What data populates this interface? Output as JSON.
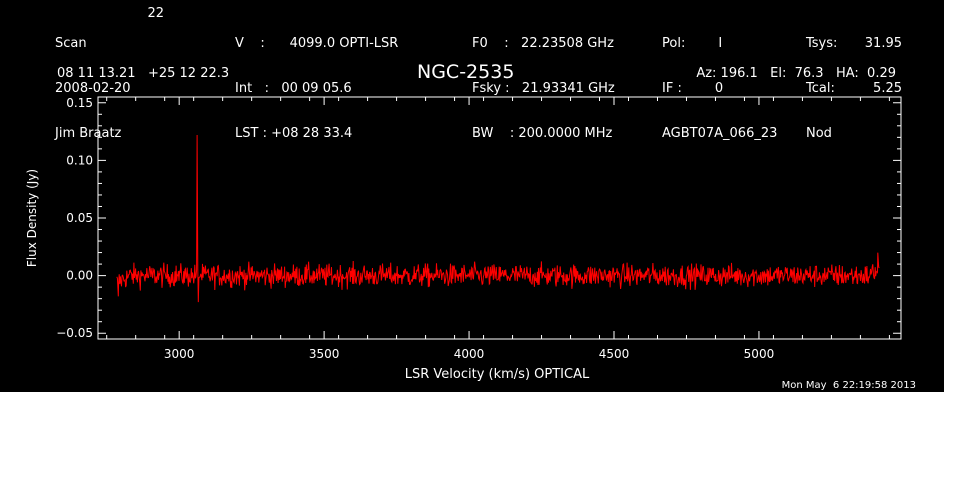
{
  "header": {
    "col1": [
      "Scan",
      "2008-02-20",
      "Jim Braatz"
    ],
    "scan_number": "22",
    "col2": [
      "V    :      4099.0 OPTI-LSR",
      "Int   :   00 09 05.6",
      "LST : +08 28 33.4"
    ],
    "col3": [
      "F0    :   22.23508 GHz",
      "Fsky :   21.93341 GHz",
      "BW    : 200.0000 MHz"
    ],
    "col4": [
      "Pol:        I",
      "IF :        0",
      "AGBT07A_066_23"
    ],
    "col5_labels": [
      "Tsys:",
      "Tcal:",
      "Nod"
    ],
    "col5_values": [
      "31.95",
      "5.25",
      ""
    ],
    "coords": "08 11 13.21   +25 12 22.3",
    "object": "NGC-2535",
    "pointing": "Az: 196.1   El:  76.3   HA:  0.29",
    "timestamp": "Mon May  6 22:19:58 2013"
  },
  "colors": {
    "background": "#000000",
    "foreground": "#ffffff",
    "trace": "#ff0000"
  },
  "chart_data": {
    "type": "line",
    "xlabel": "LSR Velocity (km/s) OPTICAL",
    "ylabel": "Flux Density (Jy)",
    "xlim": [
      2720,
      5490
    ],
    "ylim": [
      -0.055,
      0.155
    ],
    "x_ticks": [
      3000,
      3500,
      4000,
      4500,
      5000
    ],
    "y_ticks": [
      -0.05,
      0.0,
      0.05,
      0.1,
      0.15
    ],
    "y_tick_labels": [
      "−0.05",
      "0.00",
      "0.05",
      "0.10",
      "0.15"
    ],
    "x_range_data": [
      2785,
      5415
    ],
    "noise_rms": 0.005,
    "features": [
      {
        "x": 3062,
        "y": 0.122
      },
      {
        "x": 3066,
        "y": -0.023
      },
      {
        "x": 2790,
        "y": -0.018
      },
      {
        "x": 5410,
        "y": 0.02
      }
    ],
    "series": [
      {
        "values": []
      }
    ],
    "grid": false,
    "legend": "none"
  }
}
